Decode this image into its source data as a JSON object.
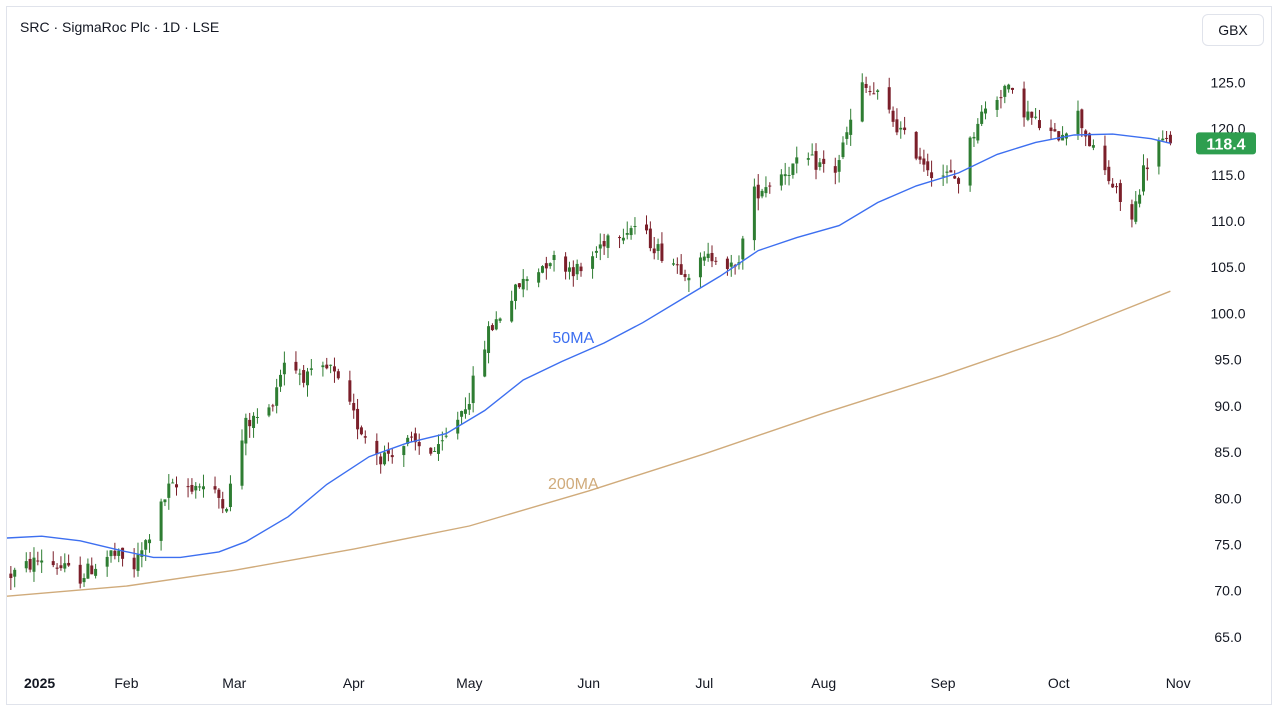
{
  "header": {
    "title": "SRC · SigmaRoc Plc · 1D · LSE",
    "currency_button": "GBX"
  },
  "chart_data": {
    "type": "candlestick",
    "title": "SRC · SigmaRoc Plc · 1D · LSE",
    "currency": "GBX",
    "last_price": 118.4,
    "last_price_label": "118.4",
    "y_range": [
      62.5,
      128.5
    ],
    "y_ticks": [
      65.0,
      70.0,
      75.0,
      80.0,
      85.0,
      90.0,
      95.0,
      100.0,
      105.0,
      110.0,
      115.0,
      120.0,
      125.0
    ],
    "y_tick_labels": [
      "65.0",
      "70.0",
      "75.0",
      "80.0",
      "85.0",
      "90.0",
      "95.0",
      "100.0",
      "105.0",
      "110.0",
      "115.0",
      "120.0",
      "125.0"
    ],
    "x_range": [
      "2025-01-01",
      "2025-11-02"
    ],
    "x_ticks": [
      {
        "label": "2025",
        "date": "2025-01-01",
        "year": true
      },
      {
        "label": "Feb",
        "date": "2025-02-01"
      },
      {
        "label": "Mar",
        "date": "2025-03-01"
      },
      {
        "label": "Apr",
        "date": "2025-04-01"
      },
      {
        "label": "May",
        "date": "2025-05-01"
      },
      {
        "label": "Jun",
        "date": "2025-06-01"
      },
      {
        "label": "Jul",
        "date": "2025-07-01"
      },
      {
        "label": "Aug",
        "date": "2025-08-01"
      },
      {
        "label": "Sep",
        "date": "2025-09-01"
      },
      {
        "label": "Oct",
        "date": "2025-10-01"
      },
      {
        "label": "Nov",
        "date": "2025-11-01"
      }
    ],
    "colors": {
      "up": "#2e7d32",
      "down": "#7b1f2a",
      "ma50": "#3d6ff0",
      "ma200": "#d0ab7b",
      "last_price_bg": "#2e9e4f",
      "grid_axis": "#131722"
    },
    "price_path": [
      [
        "2025-01-01",
        71.5
      ],
      [
        "2025-01-10",
        73.5
      ],
      [
        "2025-01-20",
        71.5
      ],
      [
        "2025-01-28",
        74.0
      ],
      [
        "2025-02-03",
        72.5
      ],
      [
        "2025-02-07",
        76.0
      ],
      [
        "2025-02-12",
        81.0
      ],
      [
        "2025-02-20",
        81.5
      ],
      [
        "2025-02-27",
        79.5
      ],
      [
        "2025-03-04",
        88.0
      ],
      [
        "2025-03-10",
        89.5
      ],
      [
        "2025-03-14",
        95.0
      ],
      [
        "2025-03-20",
        93.0
      ],
      [
        "2025-03-26",
        94.0
      ],
      [
        "2025-04-02",
        88.0
      ],
      [
        "2025-04-08",
        84.5
      ],
      [
        "2025-04-15",
        86.0
      ],
      [
        "2025-04-23",
        85.0
      ],
      [
        "2025-05-01",
        91.0
      ],
      [
        "2025-05-06",
        98.0
      ],
      [
        "2025-05-14",
        103.0
      ],
      [
        "2025-05-22",
        106.0
      ],
      [
        "2025-05-30",
        104.5
      ],
      [
        "2025-06-06",
        108.5
      ],
      [
        "2025-06-13",
        109.5
      ],
      [
        "2025-06-20",
        106.5
      ],
      [
        "2025-06-27",
        104.5
      ],
      [
        "2025-07-04",
        106.5
      ],
      [
        "2025-07-09",
        104.5
      ],
      [
        "2025-07-14",
        113.0
      ],
      [
        "2025-07-22",
        115.5
      ],
      [
        "2025-07-28",
        116.5
      ],
      [
        "2025-08-04",
        115.5
      ],
      [
        "2025-08-11",
        124.5
      ],
      [
        "2025-08-15",
        123.5
      ],
      [
        "2025-08-22",
        119.0
      ],
      [
        "2025-08-29",
        115.5
      ],
      [
        "2025-09-05",
        114.5
      ],
      [
        "2025-09-10",
        121.0
      ],
      [
        "2025-09-17",
        124.5
      ],
      [
        "2025-09-24",
        121.0
      ],
      [
        "2025-09-30",
        119.0
      ],
      [
        "2025-10-06",
        121.5
      ],
      [
        "2025-10-10",
        117.5
      ],
      [
        "2025-10-16",
        113.0
      ],
      [
        "2025-10-20",
        110.0
      ],
      [
        "2025-10-23",
        115.5
      ],
      [
        "2025-10-27",
        118.5
      ],
      [
        "2025-10-30",
        118.4
      ]
    ],
    "series": [
      {
        "name": "50MA",
        "label_at": [
          "2025-05-28",
          96.8
        ],
        "points": [
          [
            "2025-01-01",
            75.7
          ],
          [
            "2025-01-10",
            75.9
          ],
          [
            "2025-01-20",
            75.4
          ],
          [
            "2025-01-31",
            74.3
          ],
          [
            "2025-02-08",
            73.6
          ],
          [
            "2025-02-15",
            73.6
          ],
          [
            "2025-02-25",
            74.2
          ],
          [
            "2025-03-04",
            75.3
          ],
          [
            "2025-03-15",
            78.0
          ],
          [
            "2025-03-25",
            81.5
          ],
          [
            "2025-04-05",
            84.5
          ],
          [
            "2025-04-15",
            86.0
          ],
          [
            "2025-04-25",
            87.0
          ],
          [
            "2025-05-05",
            89.5
          ],
          [
            "2025-05-15",
            92.8
          ],
          [
            "2025-05-25",
            94.8
          ],
          [
            "2025-06-05",
            96.8
          ],
          [
            "2025-06-15",
            99.0
          ],
          [
            "2025-06-25",
            101.5
          ],
          [
            "2025-07-05",
            104.0
          ],
          [
            "2025-07-15",
            106.8
          ],
          [
            "2025-07-25",
            108.2
          ],
          [
            "2025-08-05",
            109.5
          ],
          [
            "2025-08-15",
            112.0
          ],
          [
            "2025-08-25",
            113.8
          ],
          [
            "2025-09-05",
            115.2
          ],
          [
            "2025-09-15",
            117.2
          ],
          [
            "2025-09-25",
            118.5
          ],
          [
            "2025-10-05",
            119.3
          ],
          [
            "2025-10-15",
            119.4
          ],
          [
            "2025-10-25",
            118.9
          ],
          [
            "2025-10-30",
            118.4
          ]
        ]
      },
      {
        "name": "200MA",
        "label_at": [
          "2025-05-28",
          81.0
        ],
        "points": [
          [
            "2025-01-01",
            69.4
          ],
          [
            "2025-02-01",
            70.5
          ],
          [
            "2025-03-01",
            72.2
          ],
          [
            "2025-04-01",
            74.5
          ],
          [
            "2025-05-01",
            77.0
          ],
          [
            "2025-06-01",
            80.8
          ],
          [
            "2025-07-01",
            84.8
          ],
          [
            "2025-08-01",
            89.2
          ],
          [
            "2025-09-01",
            93.3
          ],
          [
            "2025-10-01",
            97.6
          ],
          [
            "2025-10-30",
            102.4
          ]
        ]
      }
    ]
  }
}
